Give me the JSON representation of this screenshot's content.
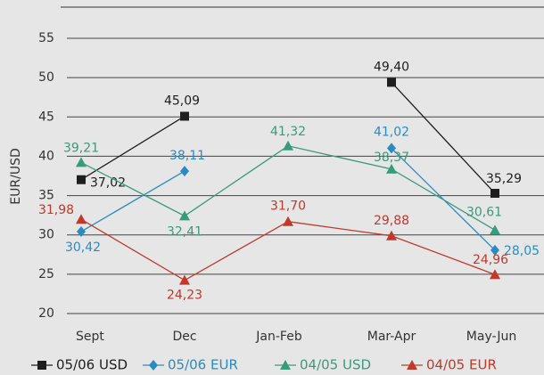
{
  "chart_data": {
    "type": "line",
    "y_label": "EUR/USD",
    "categories": [
      "Sept",
      "Dec",
      "Jan-Feb",
      "Mar-Apr",
      "May-Jun"
    ],
    "ylim": [
      20,
      55
    ],
    "yticks": [
      20,
      25,
      30,
      35,
      40,
      45,
      50,
      55
    ],
    "grid": true,
    "legend": "bottom",
    "series": [
      {
        "name": "05/06 USD",
        "color": "#1e1e1e",
        "marker": "square",
        "values": [
          37.02,
          45.09,
          null,
          49.4,
          35.29
        ],
        "value_labels": [
          "37,02",
          "45,09",
          null,
          "49,40",
          "35,29"
        ]
      },
      {
        "name": "05/06 EUR",
        "color": "#2a8bc4",
        "marker": "diamond",
        "values": [
          30.42,
          38.11,
          null,
          41.02,
          28.05
        ],
        "value_labels": [
          "30,42",
          "38,11",
          null,
          "41,02",
          "28,05"
        ]
      },
      {
        "name": "04/05 USD",
        "color": "#3a9a7c",
        "marker": "triangle",
        "values": [
          39.21,
          32.41,
          41.32,
          38.37,
          30.61
        ],
        "value_labels": [
          "39,21",
          "32,41",
          "41,32",
          "38,37",
          "30,61"
        ]
      },
      {
        "name": "04/05 EUR",
        "color": "#c0392b",
        "marker": "triangle",
        "values": [
          31.98,
          24.23,
          31.7,
          29.88,
          24.96
        ],
        "value_labels": [
          "31,98",
          "24,23",
          "31,70",
          "29,88",
          "24,96"
        ]
      }
    ]
  }
}
